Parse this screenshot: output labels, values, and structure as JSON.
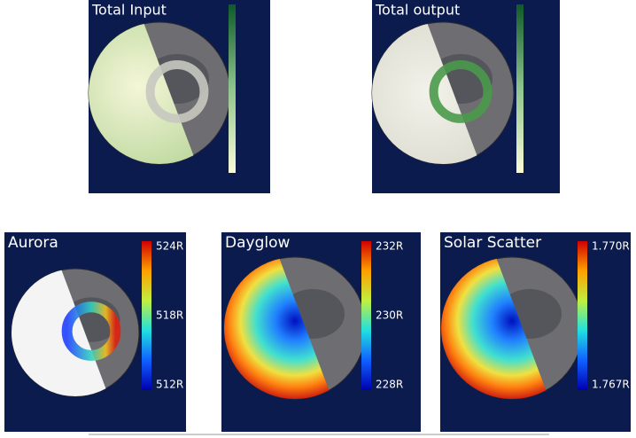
{
  "panels": [
    {
      "title": "Total Input"
    },
    {
      "title": "Total output"
    },
    {
      "title": "Aurora",
      "colorbar_labels": [
        "524R",
        "518R",
        "512R"
      ]
    },
    {
      "title": "Dayglow",
      "colorbar_labels": [
        "232R",
        "230R",
        "228R"
      ]
    },
    {
      "title": "Solar Scatter",
      "colorbar_labels": [
        "1.770R",
        "1.767R"
      ]
    }
  ]
}
